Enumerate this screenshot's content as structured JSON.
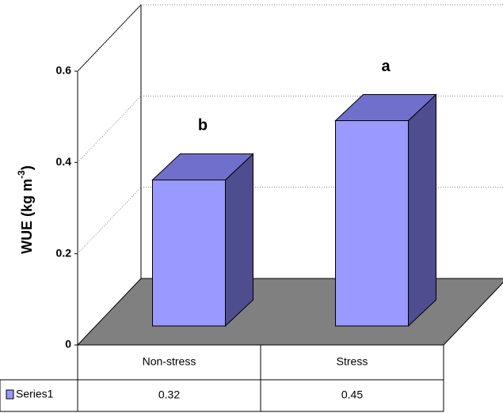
{
  "chart_data": {
    "type": "bar3d",
    "y_label": [
      "WUE (kg m",
      "-3",
      ")"
    ],
    "categories": [
      "Non-stress",
      "Stress"
    ],
    "series": [
      {
        "name": "Series1",
        "color": "#9999ff",
        "values": [
          0.32,
          0.45
        ]
      }
    ],
    "annotations": [
      "b",
      "a"
    ],
    "ylim": [
      0,
      0.6
    ],
    "yticks": [
      0,
      0.2,
      0.4,
      0.6
    ],
    "grid": true,
    "legend": "table"
  }
}
